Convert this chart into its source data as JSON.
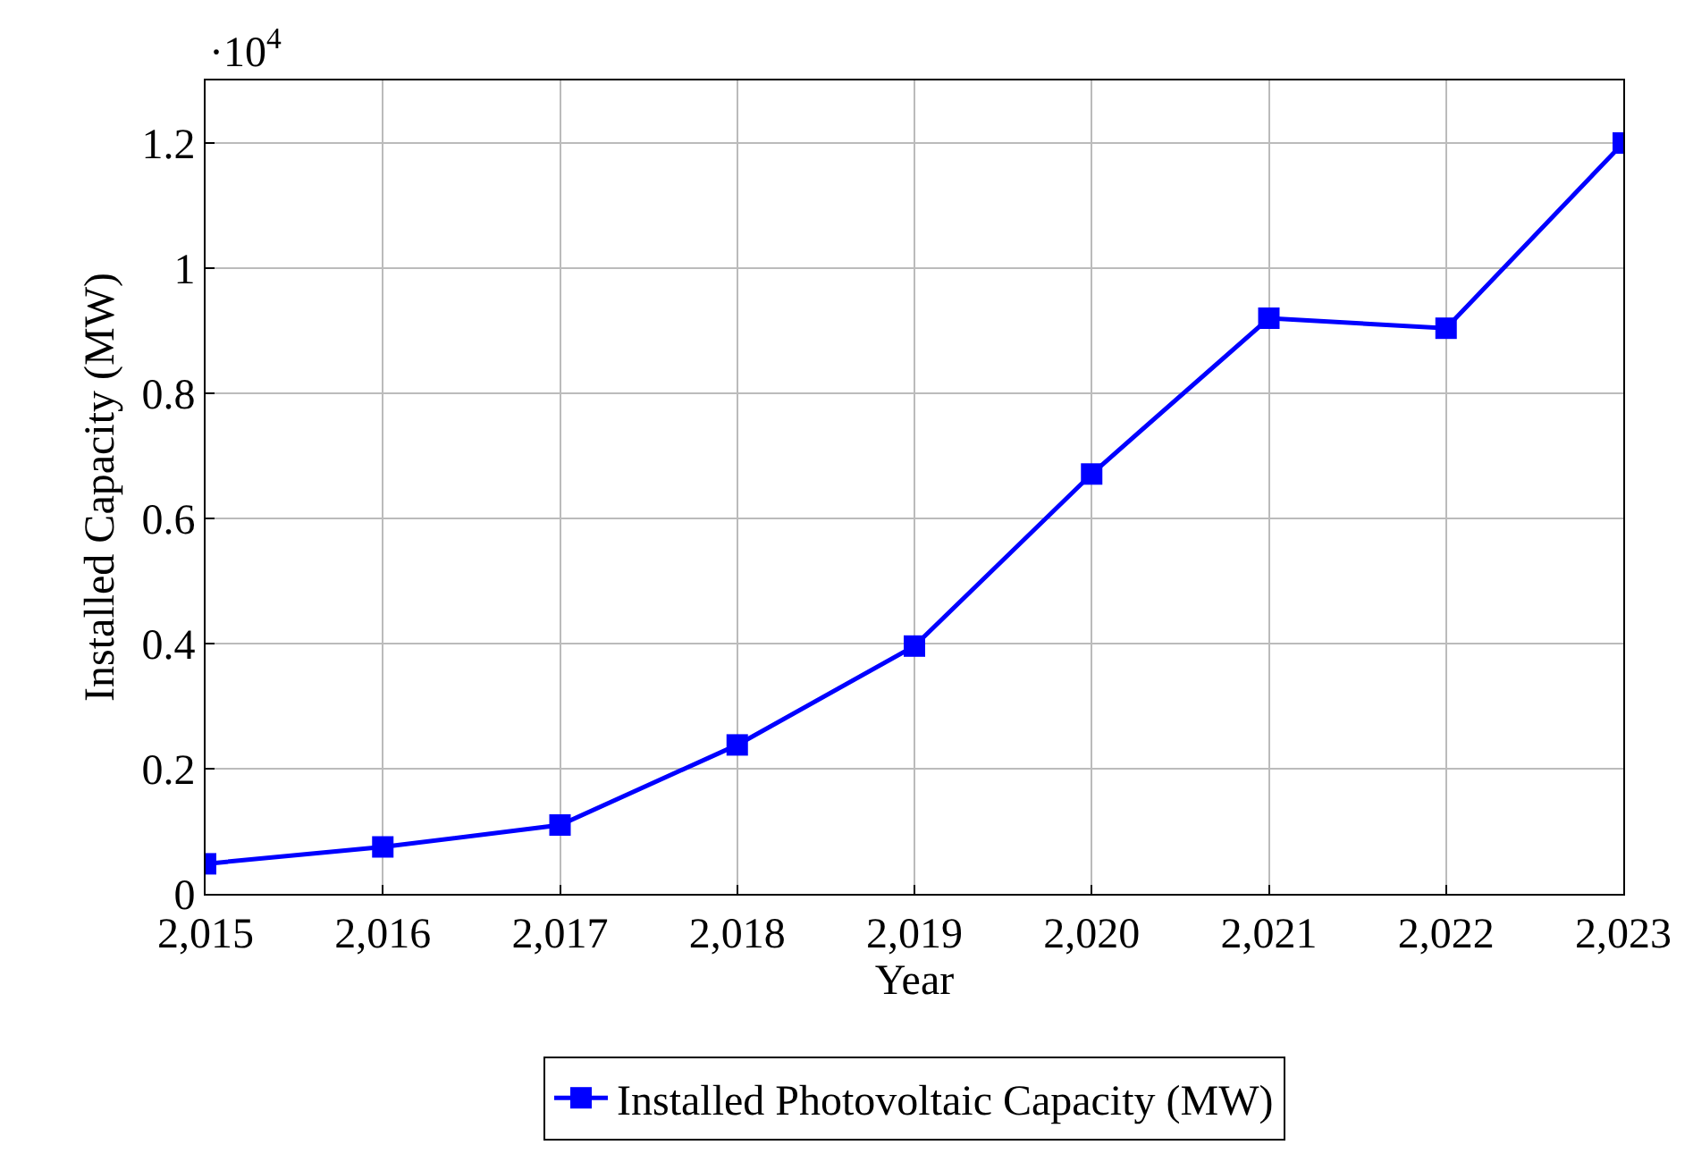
{
  "chart_data": {
    "type": "line",
    "xlabel": "Year",
    "ylabel": "Installed Capacity (MW)",
    "annotations": [
      "·10$^{4}$"
    ],
    "x": [
      2015,
      2016,
      2017,
      2018,
      2019,
      2020,
      2021,
      2022,
      2023
    ],
    "series": [
      {
        "name": "Installed Photovoltaic Capacity (MW)",
        "color": "#0000ff",
        "values": [
          0.048,
          0.075,
          0.11,
          0.238,
          0.396,
          0.671,
          0.92,
          0.904,
          1.2
        ]
      }
    ],
    "xlim": [
      2015,
      2023
    ],
    "xticks": [
      {
        "value": 2015,
        "label": "2,015"
      },
      {
        "value": 2016,
        "label": "2,016"
      },
      {
        "value": 2017,
        "label": "2,017"
      },
      {
        "value": 2018,
        "label": "2,018"
      },
      {
        "value": 2019,
        "label": "2,019"
      },
      {
        "value": 2020,
        "label": "2,020"
      },
      {
        "value": 2021,
        "label": "2,021"
      },
      {
        "value": 2022,
        "label": "2,022"
      },
      {
        "value": 2023,
        "label": "2,023"
      }
    ],
    "ylim": [
      0,
      1.3
    ],
    "yticks": [
      0,
      0.2,
      0.4,
      0.6,
      0.8,
      1,
      1.2
    ],
    "grid": true,
    "legend": "bottom",
    "marker": "square",
    "line_style": "solid"
  }
}
